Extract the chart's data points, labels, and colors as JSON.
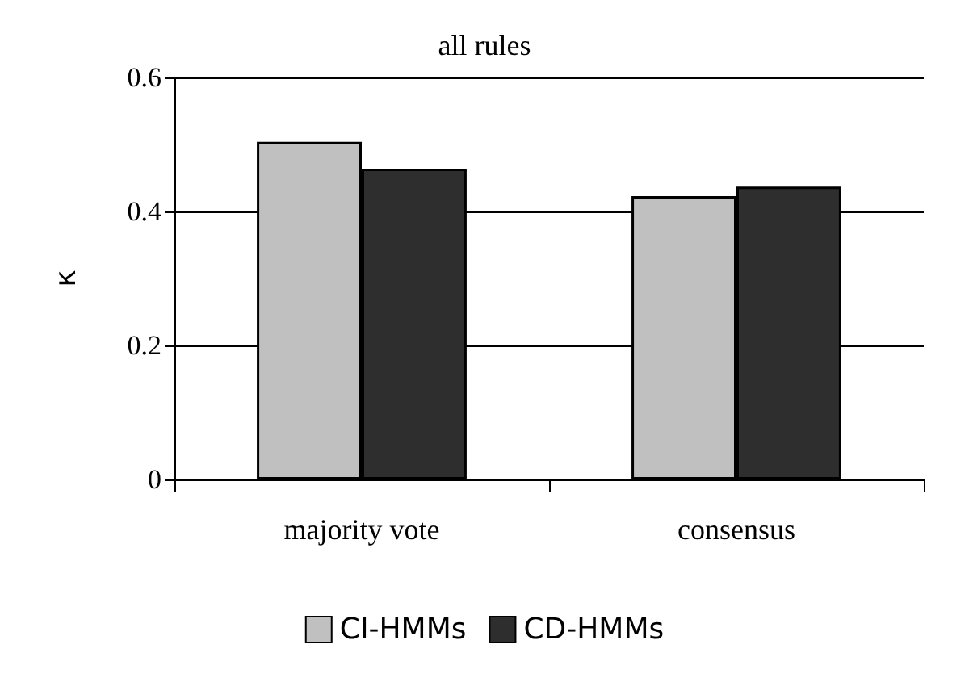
{
  "chart_data": {
    "type": "bar",
    "title": "all rules",
    "ylabel": "κ",
    "categories": [
      "majority vote",
      "consensus"
    ],
    "series": [
      {
        "name": "CI-HMMs",
        "color": "#c0c0c0",
        "values": [
          0.504,
          0.423
        ]
      },
      {
        "name": "CD-HMMs",
        "color": "#2e2e2e",
        "values": [
          0.464,
          0.437
        ]
      }
    ],
    "ylim": [
      0,
      0.6
    ],
    "yticks": [
      0,
      0.2,
      0.4,
      0.6
    ],
    "grid": "y",
    "legend": "bottom"
  }
}
